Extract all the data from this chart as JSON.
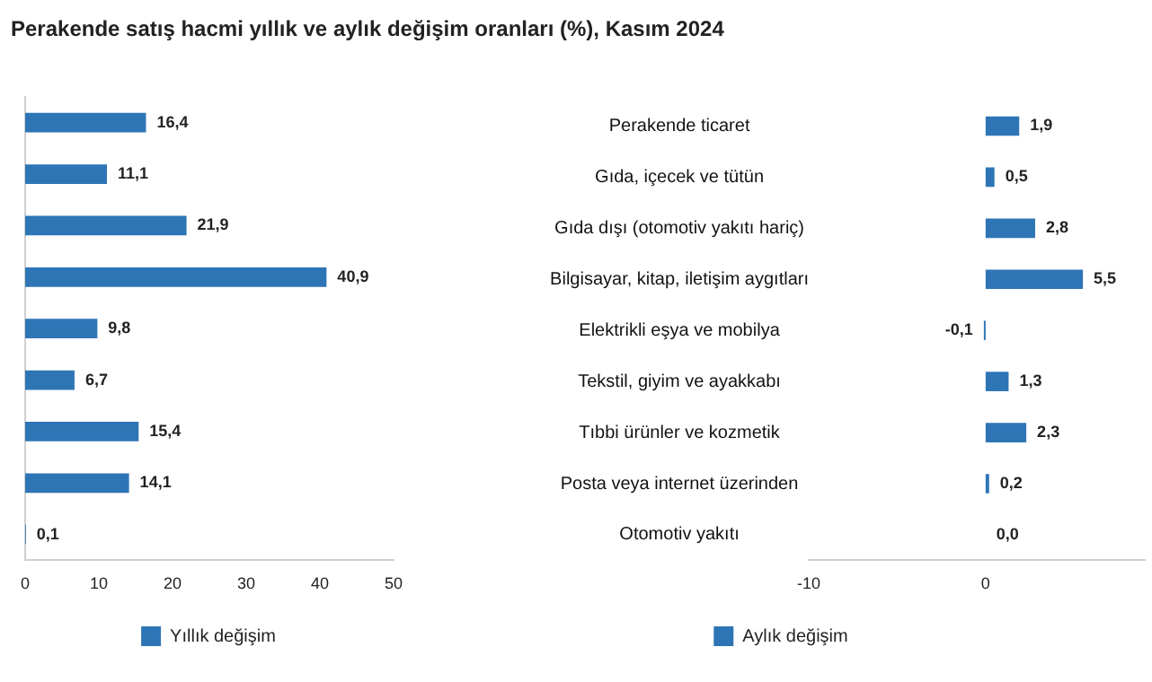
{
  "chart_data": [
    {
      "type": "bar",
      "orientation": "horizontal",
      "title": "Perakende satış hacmi yıllık ve aylık değişim oranları (%), Kasım 2024",
      "categories": [
        null,
        null,
        null,
        null,
        null,
        null,
        null,
        null,
        null
      ],
      "series": [
        {
          "name": "Yıllık değişim",
          "color": "#2e75b6",
          "values": [
            16.4,
            11.1,
            21.9,
            40.9,
            9.8,
            6.7,
            15.4,
            14.1,
            0.1
          ],
          "value_labels": [
            "16,4",
            "11,1",
            "21,9",
            "40,9",
            "9,8",
            "6,7",
            "15,4",
            "14,1",
            "0,1"
          ]
        }
      ],
      "xlim": [
        0,
        50
      ],
      "xticks": [
        0,
        10,
        20,
        30,
        40,
        50
      ],
      "tick_labels": "x",
      "legend": "bottom",
      "grid": false
    },
    {
      "type": "bar",
      "orientation": "horizontal",
      "categories": [
        "Perakende ticaret",
        "Gıda, içecek ve tütün",
        "Gıda dışı (otomotiv yakıtı hariç)",
        "Bilgisayar, kitap, iletişim aygıtları",
        "Elektrikli eşya ve mobilya",
        "Tekstil, giyim ve ayakkabı",
        "Tıbbi ürünler ve kozmetik",
        "Posta veya internet üzerinden",
        "Otomotiv yakıtı"
      ],
      "series": [
        {
          "name": "Aylık değişim",
          "color": "#2e75b6",
          "values": [
            1.9,
            0.5,
            2.8,
            5.5,
            -0.1,
            1.3,
            2.3,
            0.2,
            0.0
          ],
          "value_labels": [
            "1,9",
            "0,5",
            "2,8",
            "5,5",
            "-0,1",
            "1,3",
            "2,3",
            "0,2",
            "0,0"
          ]
        }
      ],
      "xlim": [
        -10,
        9
      ],
      "xticks": [
        -10,
        0
      ],
      "legend": "bottom",
      "grid": false
    }
  ]
}
